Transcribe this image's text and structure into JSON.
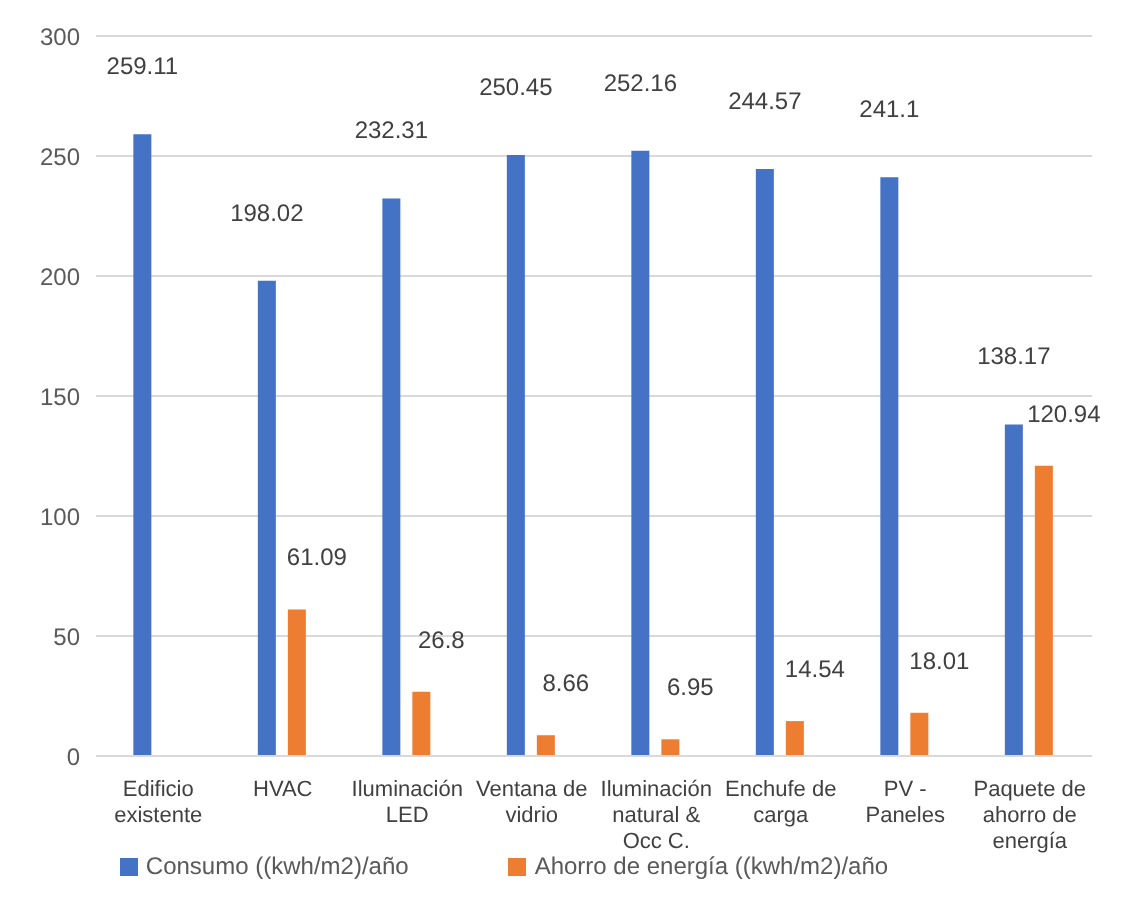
{
  "chart_data": {
    "type": "bar",
    "categories": [
      "Edificio existente",
      "HVAC",
      "Iluminación LED",
      "Ventana de vidrio",
      "Iluminación natural & Occ C.",
      "Enchufe de carga",
      "PV - Paneles",
      "Paquete de ahorro de energía"
    ],
    "series": [
      {
        "name": "Consumo ((kwh/m2)/año",
        "color": "#4472c4",
        "values": [
          259.11,
          198.02,
          232.31,
          250.45,
          252.16,
          244.57,
          241.1,
          138.17
        ]
      },
      {
        "name": "Ahorro de energía  ((kwh/m2)/año",
        "color": "#ed7d31",
        "values": [
          null,
          61.09,
          26.8,
          8.66,
          6.95,
          14.54,
          18.01,
          120.94
        ]
      }
    ],
    "ylim": [
      0,
      300
    ],
    "yticks": [
      0,
      50,
      100,
      150,
      200,
      250,
      300
    ],
    "grid": "y",
    "legend": "bottom",
    "data_labels": true
  }
}
